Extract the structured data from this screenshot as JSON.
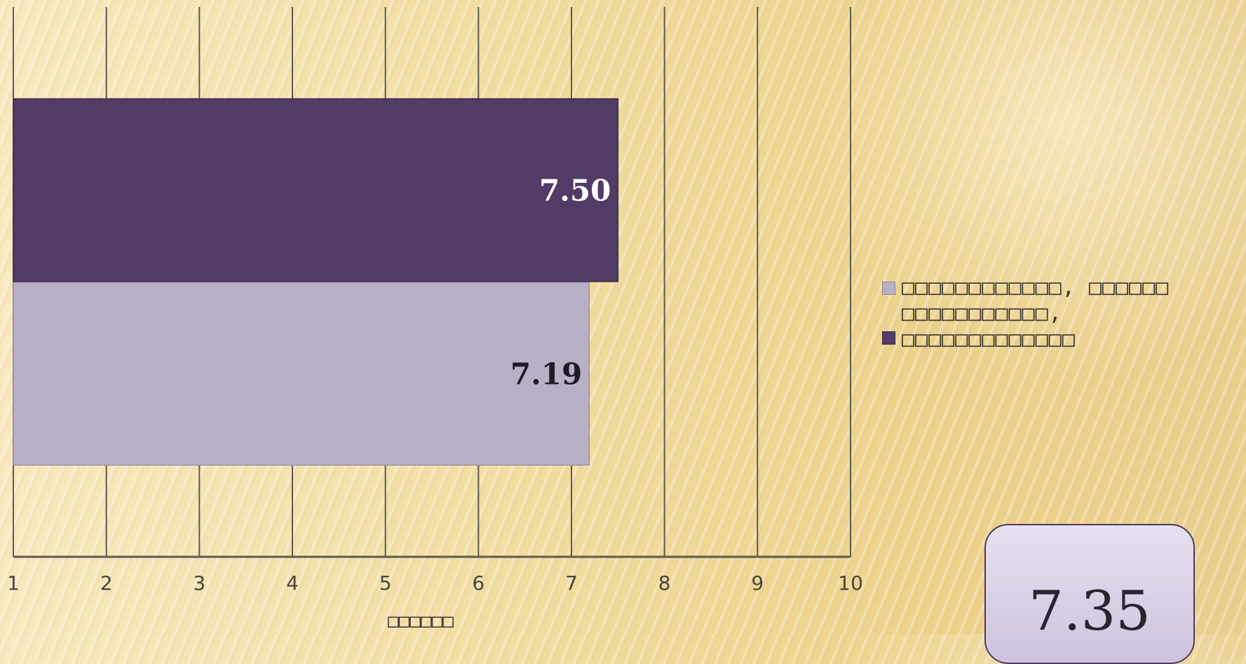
{
  "chart_data": {
    "type": "bar",
    "orientation": "horizontal",
    "xlim": [
      1,
      10
    ],
    "ticks": [
      1,
      2,
      3,
      4,
      5,
      6,
      7,
      8,
      9,
      10
    ],
    "xlabel": "□□□□□□",
    "grid": true,
    "legend_position": "right",
    "series": [
      {
        "name": "□□□□□□□□□□□□, □□□□□□",
        "values": [
          7.19
        ],
        "label": "7.19",
        "color": "#b9b0c6"
      },
      {
        "name": "□□□□□□□□□□□, □□□□□□□□□□□□□",
        "values": [
          7.5
        ],
        "label": "7.50",
        "color": "#523b64"
      }
    ]
  },
  "legend": {
    "items": [
      {
        "label": "□□□□□□□□□□□□, □□□□□□"
      },
      {
        "label": "□□□□□□□□□□□, □□□□□□□□□□□□□"
      }
    ]
  },
  "average": {
    "value": "7.35"
  }
}
